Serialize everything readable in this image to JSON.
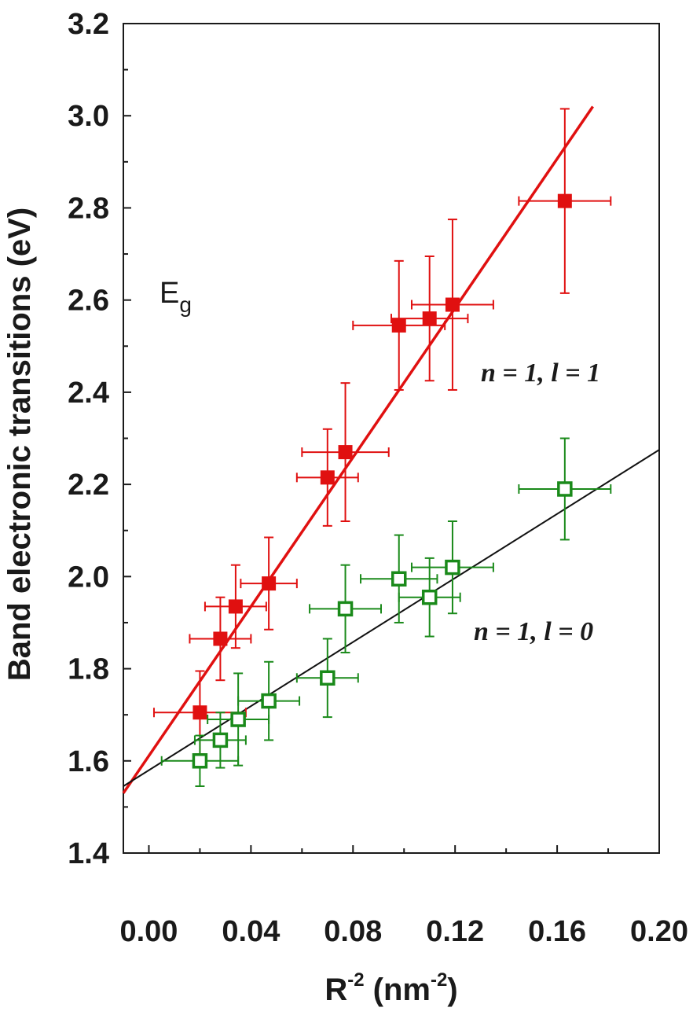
{
  "chart_data": {
    "type": "scatter",
    "xlabel": {
      "base": "R",
      "sup": "-2",
      "unit_open": " (nm",
      "unit_sup": "-2",
      "unit_close": ")"
    },
    "ylabel": "Band electronic transitions (eV)",
    "xlim": [
      -0.01,
      0.2
    ],
    "ylim": [
      1.4,
      3.2
    ],
    "xticks": [
      0.0,
      0.04,
      0.08,
      0.12,
      0.16,
      0.2
    ],
    "xtick_labels": [
      "0.00",
      "0.04",
      "0.08",
      "0.12",
      "0.16",
      "0.20"
    ],
    "yticks": [
      1.4,
      1.6,
      1.8,
      2.0,
      2.2,
      2.4,
      2.6,
      2.8,
      3.0,
      3.2
    ],
    "ytick_labels": [
      "1.4",
      "1.6",
      "1.8",
      "2.0",
      "2.2",
      "2.4",
      "2.6",
      "2.8",
      "3.0",
      "3.2"
    ],
    "grid": false,
    "annotations": {
      "eg": {
        "main": "E",
        "sub": "g"
      },
      "series1": "n = 1, l = 1",
      "series2": "n = 1, l = 0"
    },
    "series": [
      {
        "color": "#e01010",
        "marker": "filled-square",
        "points": [
          {
            "x": 0.02,
            "y": 1.705,
            "xerr": 0.018,
            "yerr": 0.09
          },
          {
            "x": 0.028,
            "y": 1.865,
            "xerr": 0.012,
            "yerr": 0.09
          },
          {
            "x": 0.034,
            "y": 1.935,
            "xerr": 0.012,
            "yerr": 0.09
          },
          {
            "x": 0.047,
            "y": 1.985,
            "xerr": 0.011,
            "yerr": 0.1
          },
          {
            "x": 0.07,
            "y": 2.215,
            "xerr": 0.012,
            "yerr": 0.105
          },
          {
            "x": 0.077,
            "y": 2.27,
            "xerr": 0.017,
            "yerr": 0.15
          },
          {
            "x": 0.098,
            "y": 2.545,
            "xerr": 0.018,
            "yerr": 0.14
          },
          {
            "x": 0.11,
            "y": 2.56,
            "xerr": 0.015,
            "yerr": 0.135
          },
          {
            "x": 0.119,
            "y": 2.59,
            "xerr": 0.016,
            "yerr": 0.185
          },
          {
            "x": 0.163,
            "y": 2.815,
            "xerr": 0.018,
            "yerr": 0.2
          }
        ],
        "fit": {
          "x": [
            -0.01,
            0.174
          ],
          "y": [
            1.53,
            3.02
          ]
        }
      },
      {
        "color": "#1a8a1a",
        "marker": "open-square",
        "points": [
          {
            "x": 0.02,
            "y": 1.6,
            "xerr": 0.015,
            "yerr": 0.055
          },
          {
            "x": 0.028,
            "y": 1.645,
            "xerr": 0.01,
            "yerr": 0.06
          },
          {
            "x": 0.035,
            "y": 1.69,
            "xerr": 0.012,
            "yerr": 0.1
          },
          {
            "x": 0.047,
            "y": 1.73,
            "xerr": 0.012,
            "yerr": 0.085
          },
          {
            "x": 0.07,
            "y": 1.78,
            "xerr": 0.012,
            "yerr": 0.085
          },
          {
            "x": 0.077,
            "y": 1.93,
            "xerr": 0.014,
            "yerr": 0.095
          },
          {
            "x": 0.098,
            "y": 1.995,
            "xerr": 0.015,
            "yerr": 0.095
          },
          {
            "x": 0.11,
            "y": 1.955,
            "xerr": 0.012,
            "yerr": 0.085
          },
          {
            "x": 0.119,
            "y": 2.02,
            "xerr": 0.016,
            "yerr": 0.1
          },
          {
            "x": 0.163,
            "y": 2.19,
            "xerr": 0.018,
            "yerr": 0.11
          }
        ],
        "fit": {
          "x": [
            -0.01,
            0.2
          ],
          "y": [
            1.545,
            2.275
          ]
        }
      }
    ]
  }
}
